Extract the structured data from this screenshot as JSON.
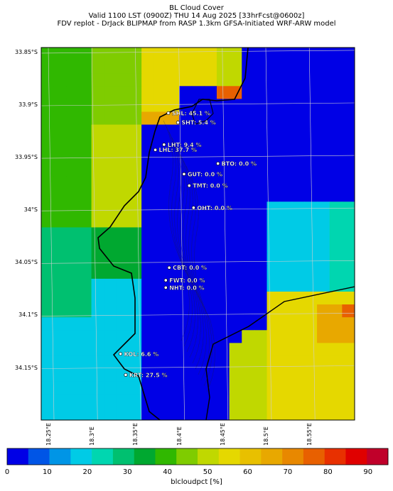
{
  "header": {
    "line1": "BL Cloud Cover",
    "line2": "Valid 1100 LST (0900Z) THU 14 Aug 2025 [33hrFcst@0600z]",
    "line3": "FDV replot - DrJack BLIPMAP from RASP 1.3km GFSA-Initiated WRF-ARW model"
  },
  "axes": {
    "lat_labels": [
      "33.85°S",
      "33.9°S",
      "33.95°S",
      "34°S",
      "34.05°S",
      "34.1°S",
      "34.15°S"
    ],
    "lon_labels": [
      "18.25°E",
      "18.3°E",
      "18.35°E",
      "18.4°E",
      "18.45°E",
      "18.5°E",
      "18.55°E"
    ]
  },
  "stations": [
    {
      "label": "SHL: 45.1 %",
      "lat": -33.907,
      "lon": 18.388
    },
    {
      "label": "SHT: 5.4 %",
      "lat": -33.916,
      "lon": 18.399
    },
    {
      "label": "LHT: 9.4 %",
      "lat": -33.937,
      "lon": 18.383
    },
    {
      "label": "LHL: 37.7 %",
      "lat": -33.942,
      "lon": 18.373
    },
    {
      "label": "BTO: 0.0 %",
      "lat": -33.955,
      "lon": 18.445
    },
    {
      "label": "GUT: 0.0 %",
      "lat": -33.965,
      "lon": 18.406
    },
    {
      "label": "TMT: 0.0 %",
      "lat": -33.976,
      "lon": 18.412
    },
    {
      "label": "OHT: 0.0 %",
      "lat": -33.997,
      "lon": 18.417
    },
    {
      "label": "CBT: 0.0 %",
      "lat": -34.054,
      "lon": 18.389
    },
    {
      "label": "FWT: 0.0 %",
      "lat": -34.066,
      "lon": 18.385
    },
    {
      "label": "NHT: 0.0 %",
      "lat": -34.073,
      "lon": 18.385
    },
    {
      "label": "KOL: 6.6 %",
      "lat": -34.136,
      "lon": 18.333
    },
    {
      "label": "KRT: 27.5 %",
      "lat": -34.156,
      "lon": 18.339
    }
  ],
  "colorbar": {
    "label": "blcloudpct [%]",
    "ticks": [
      "0",
      "10",
      "20",
      "30",
      "40",
      "50",
      "60",
      "70",
      "80",
      "90"
    ],
    "colors": [
      "#0000e6",
      "#0055e6",
      "#0095e6",
      "#00cbe6",
      "#00d6b0",
      "#00c070",
      "#00a830",
      "#30b800",
      "#7fcc00",
      "#c0d800",
      "#e5d800",
      "#e8c000",
      "#e8a800",
      "#e88800",
      "#e86000",
      "#e83000",
      "#e00000",
      "#c0002a"
    ]
  }
}
